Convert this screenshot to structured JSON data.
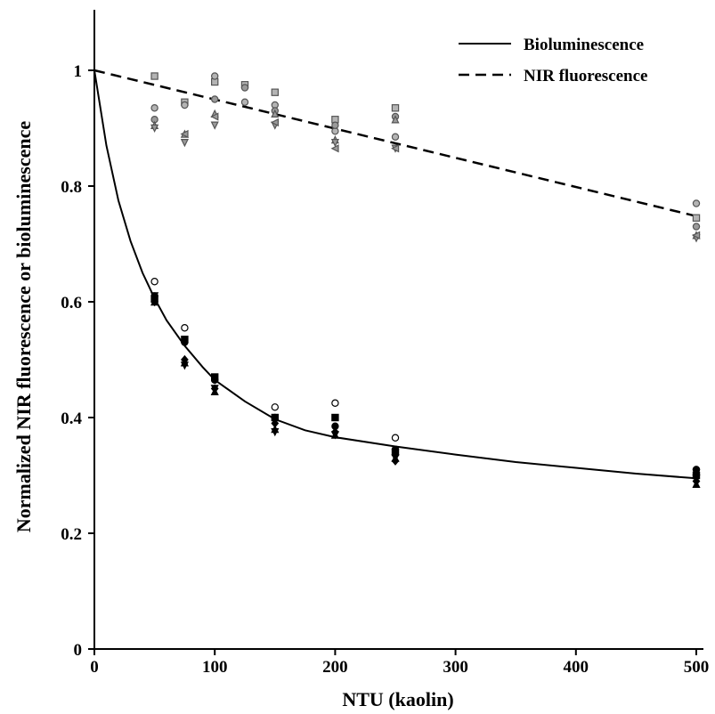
{
  "chart_data": {
    "type": "scatter",
    "title": "",
    "xlabel": "NTU (kaolin)",
    "ylabel": "Normalized NIR fluorescence or bioluminescence",
    "xlim": [
      0,
      510
    ],
    "ylim": [
      0,
      1.1
    ],
    "x_ticks": [
      0,
      100,
      200,
      300,
      400,
      500
    ],
    "y_ticks": [
      0,
      0.2,
      0.4,
      0.6,
      0.8,
      1
    ],
    "x_tick_labels": [
      "0",
      "100",
      "200",
      "300",
      "400",
      "500"
    ],
    "y_tick_labels": [
      "0",
      "0.2",
      "0.4",
      "0.6",
      "0.8",
      "1"
    ],
    "grid": false,
    "legend_position": "top-right",
    "series": [
      {
        "name": "Bioluminescence",
        "kind": "line",
        "style": "solid",
        "color": "#000000",
        "x": [
          0,
          10,
          20,
          30,
          40,
          50,
          60,
          75,
          90,
          100,
          125,
          150,
          175,
          200,
          250,
          300,
          350,
          400,
          450,
          500
        ],
        "y": [
          1.0,
          0.87,
          0.775,
          0.705,
          0.65,
          0.606,
          0.568,
          0.524,
          0.487,
          0.465,
          0.428,
          0.397,
          0.378,
          0.366,
          0.35,
          0.336,
          0.323,
          0.313,
          0.303,
          0.295
        ]
      },
      {
        "name": "NIR fluorescence",
        "kind": "line",
        "style": "dashed",
        "color": "#000000",
        "x": [
          0,
          500
        ],
        "y": [
          1.0,
          0.748
        ]
      }
    ],
    "points": {
      "bioluminescence": [
        {
          "marker": "circle-open",
          "color": "#000000",
          "data": [
            [
              50,
              0.635
            ],
            [
              75,
              0.555
            ],
            [
              100,
              0.465
            ],
            [
              150,
              0.418
            ],
            [
              200,
              0.425
            ],
            [
              250,
              0.365
            ],
            [
              500,
              0.31
            ]
          ]
        },
        {
          "marker": "circle",
          "color": "#000000",
          "data": [
            [
              50,
              0.61
            ],
            [
              75,
              0.53
            ],
            [
              100,
              0.465
            ],
            [
              150,
              0.4
            ],
            [
              200,
              0.385
            ],
            [
              250,
              0.345
            ],
            [
              500,
              0.31
            ]
          ]
        },
        {
          "marker": "square",
          "color": "#000000",
          "data": [
            [
              50,
              0.605
            ],
            [
              75,
              0.535
            ],
            [
              100,
              0.47
            ],
            [
              150,
              0.4
            ],
            [
              200,
              0.4
            ],
            [
              250,
              0.34
            ],
            [
              500,
              0.3
            ]
          ]
        },
        {
          "marker": "diamond",
          "color": "#000000",
          "data": [
            [
              50,
              0.6
            ],
            [
              75,
              0.5
            ],
            [
              100,
              0.45
            ],
            [
              150,
              0.39
            ],
            [
              200,
              0.375
            ],
            [
              250,
              0.325
            ],
            [
              500,
              0.29
            ]
          ]
        },
        {
          "marker": "triangle-up",
          "color": "#000000",
          "data": [
            [
              50,
              0.6
            ],
            [
              75,
              0.495
            ],
            [
              100,
              0.445
            ],
            [
              150,
              0.38
            ],
            [
              200,
              0.37
            ],
            [
              250,
              0.33
            ],
            [
              500,
              0.285
            ]
          ]
        },
        {
          "marker": "triangle-down",
          "color": "#000000",
          "data": [
            [
              50,
              0.61
            ],
            [
              75,
              0.49
            ],
            [
              100,
              0.45
            ],
            [
              150,
              0.375
            ],
            [
              200,
              0.37
            ],
            [
              250,
              0.33
            ],
            [
              500,
              0.295
            ]
          ]
        }
      ],
      "nir_fluorescence": [
        {
          "marker": "square",
          "color": "#b4b4b4",
          "data": [
            [
              50,
              0.99
            ],
            [
              75,
              0.945
            ],
            [
              100,
              0.98
            ],
            [
              125,
              0.975
            ],
            [
              150,
              0.962
            ],
            [
              200,
              0.915
            ],
            [
              250,
              0.935
            ],
            [
              500,
              0.745
            ]
          ]
        },
        {
          "marker": "circle",
          "color": "#b4b4b4",
          "data": [
            [
              50,
              0.935
            ],
            [
              75,
              0.94
            ],
            [
              100,
              0.99
            ],
            [
              125,
              0.945
            ],
            [
              150,
              0.94
            ],
            [
              200,
              0.895
            ],
            [
              250,
              0.885
            ],
            [
              500,
              0.77
            ]
          ]
        },
        {
          "marker": "circle",
          "color": "#9a9a9a",
          "data": [
            [
              50,
              0.915
            ],
            [
              100,
              0.95
            ],
            [
              125,
              0.97
            ],
            [
              150,
              0.93
            ],
            [
              200,
              0.905
            ],
            [
              250,
              0.92
            ],
            [
              500,
              0.73
            ]
          ]
        },
        {
          "marker": "triangle-up",
          "color": "#9a9a9a",
          "data": [
            [
              50,
              0.905
            ],
            [
              75,
              0.89
            ],
            [
              100,
              0.925
            ],
            [
              150,
              0.925
            ],
            [
              200,
              0.88
            ],
            [
              250,
              0.915
            ],
            [
              500,
              0.715
            ]
          ]
        },
        {
          "marker": "triangle-down",
          "color": "#9a9a9a",
          "data": [
            [
              50,
              0.9
            ],
            [
              75,
              0.875
            ],
            [
              100,
              0.905
            ],
            [
              150,
              0.905
            ],
            [
              200,
              0.875
            ],
            [
              250,
              0.865
            ],
            [
              500,
              0.71
            ]
          ]
        },
        {
          "marker": "triangle-left",
          "color": "#9a9a9a",
          "data": [
            [
              75,
              0.89
            ],
            [
              100,
              0.92
            ],
            [
              150,
              0.91
            ],
            [
              200,
              0.865
            ],
            [
              250,
              0.865
            ],
            [
              500,
              0.715
            ]
          ]
        }
      ]
    }
  }
}
